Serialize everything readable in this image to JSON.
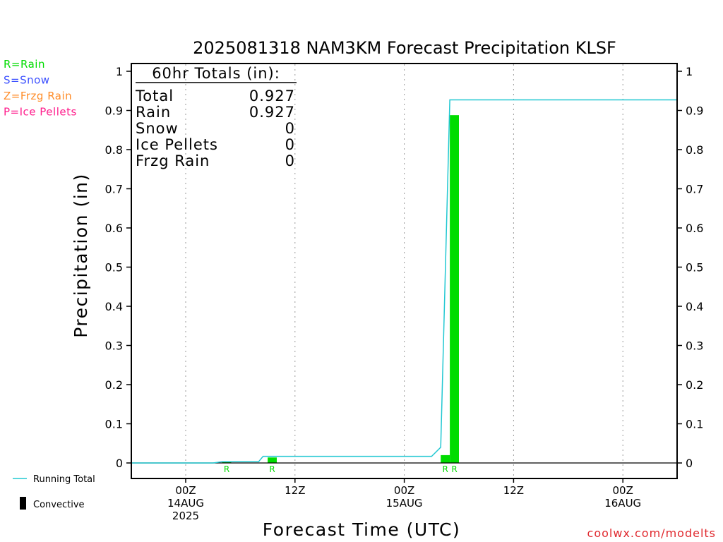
{
  "chart_data": {
    "type": "bar",
    "title": "2025081318 NAM3KM Forecast Precipitation KLSF",
    "xlabel": "Forecast Time (UTC)",
    "ylabel": "Precipitation (in)",
    "ylim": [
      0,
      1
    ],
    "yticks": [
      "1",
      "0.9",
      "0.8",
      "0.7",
      "0.6",
      "0.5",
      "0.4",
      "0.3",
      "0.2",
      "0.1",
      "0"
    ],
    "xticks": [
      {
        "hour": 6,
        "lines": [
          "00Z",
          "14AUG",
          "2025"
        ]
      },
      {
        "hour": 18,
        "lines": [
          "12Z"
        ]
      },
      {
        "hour": 30,
        "lines": [
          "00Z",
          "15AUG"
        ]
      },
      {
        "hour": 42,
        "lines": [
          "12Z"
        ]
      },
      {
        "hour": 54,
        "lines": [
          "00Z",
          "16AUG"
        ]
      }
    ],
    "x_unit": "forecast hour (starts 2025-08-13 18Z)",
    "x_range": [
      0,
      60
    ],
    "grid": "vertical dotted",
    "series": [
      {
        "name": "Running Total",
        "type": "line",
        "color": "#22c8d2",
        "x": [
          0,
          6,
          9,
          10,
          14,
          14.5,
          15,
          33,
          34,
          35,
          60
        ],
        "y": [
          0,
          0,
          0,
          0.003,
          0.003,
          0.017,
          0.017,
          0.017,
          0.04,
          0.927,
          0.927
        ]
      },
      {
        "name": "Precipitation",
        "type": "bar",
        "color": "#00dc00",
        "bars": [
          {
            "start": 10,
            "end": 11,
            "value": 0.003
          },
          {
            "start": 15,
            "end": 16,
            "value": 0.014
          },
          {
            "start": 34,
            "end": 35,
            "value": 0.02
          },
          {
            "start": 35,
            "end": 36,
            "value": 0.888
          }
        ]
      }
    ],
    "ptype_markers": [
      {
        "hour": 11,
        "label": "R"
      },
      {
        "hour": 16,
        "label": "R"
      },
      {
        "hour": 35,
        "label": "R"
      },
      {
        "hour": 36,
        "label": "R"
      }
    ],
    "totals_box": {
      "heading": "60hr Totals (in):",
      "rows": [
        {
          "label": "Total",
          "value": "0.927"
        },
        {
          "label": "Rain",
          "value": "0.927"
        },
        {
          "label": "Snow",
          "value": "0"
        },
        {
          "label": "Ice Pellets",
          "value": "0"
        },
        {
          "label": "Frzg Rain",
          "value": "0"
        }
      ]
    },
    "ptype_legend": [
      {
        "text": "R=Rain",
        "color": "#00dc00"
      },
      {
        "text": "S=Snow",
        "color": "#3c50ff"
      },
      {
        "text": "Z=Frzg Rain",
        "color": "#ff8c28"
      },
      {
        "text": "P=Ice Pellets",
        "color": "#ff1e8c"
      }
    ],
    "legend": [
      {
        "text": "Running Total",
        "color": "#22c8d2",
        "symbol": "line"
      },
      {
        "text": "Convective",
        "color": "#000000",
        "symbol": "bar"
      }
    ],
    "credit": "coolwx.com/modelts",
    "credit_color": "#e0282d"
  }
}
